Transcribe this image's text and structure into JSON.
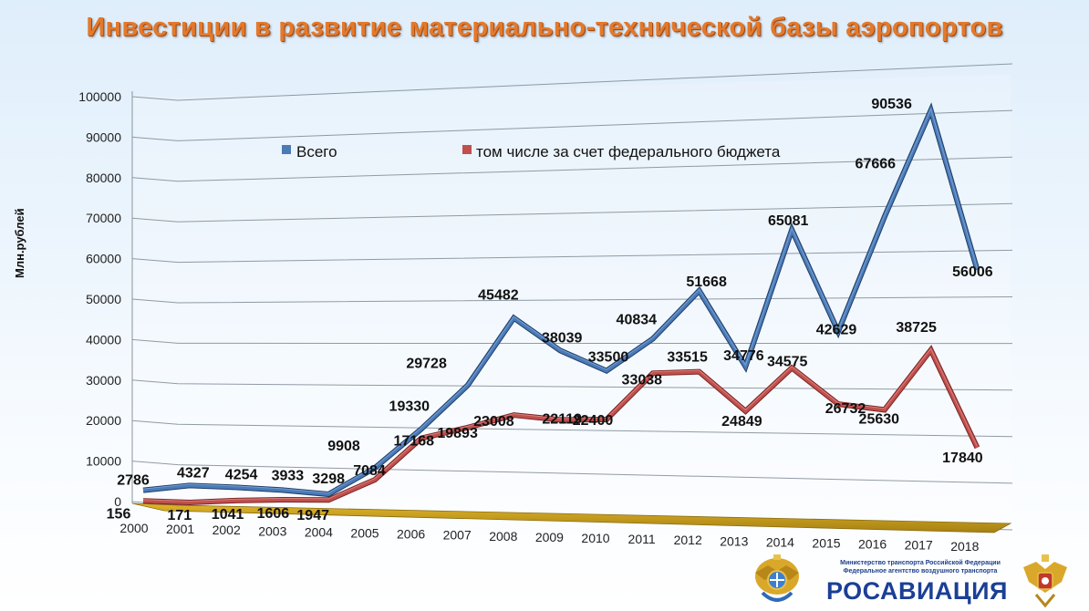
{
  "title": "Инвестиции в развитие материально-технической базы аэропортов",
  "logo": {
    "ministry": "Министерство транспорта Российской Федерации",
    "agency": "Федеральное агентство воздушного транспорта",
    "brand": "РОСАВИАЦИЯ"
  },
  "colors": {
    "total": "#4a7ab8",
    "federal": "#c0504d",
    "floor": "#c9a21a",
    "title": "#e4792c"
  },
  "chart_data": {
    "type": "line",
    "title": "Инвестиции в развитие материально-технической базы аэропортов",
    "ylabel": "Млн.рублей",
    "xlabel": "",
    "ylim": [
      0,
      100000
    ],
    "yticks": [
      0,
      10000,
      20000,
      30000,
      40000,
      50000,
      60000,
      70000,
      80000,
      90000,
      100000
    ],
    "grid": true,
    "legend_position": "top",
    "categories": [
      "2000",
      "2001",
      "2002",
      "2003",
      "2004",
      "2005",
      "2006",
      "2007",
      "2008",
      "2009",
      "2010",
      "2011",
      "2012",
      "2013",
      "2014",
      "2015",
      "2016",
      "2017",
      "2018"
    ],
    "series": [
      {
        "name": "Всего",
        "color": "#4a7ab8",
        "values": [
          2786,
          4327,
          4254,
          3933,
          3298,
          9908,
          19330,
          29728,
          45482,
          38039,
          33500,
          40834,
          51668,
          34776,
          65081,
          42629,
          67666,
          90536,
          56006
        ]
      },
      {
        "name": "том числе за счет федерального бюджета",
        "color": "#c0504d",
        "values": [
          156,
          171,
          1041,
          1606,
          1947,
          7084,
          17168,
          19893,
          23008,
          22119,
          22400,
          33038,
          33515,
          24849,
          34575,
          26732,
          25630,
          38725,
          17840
        ]
      }
    ]
  }
}
